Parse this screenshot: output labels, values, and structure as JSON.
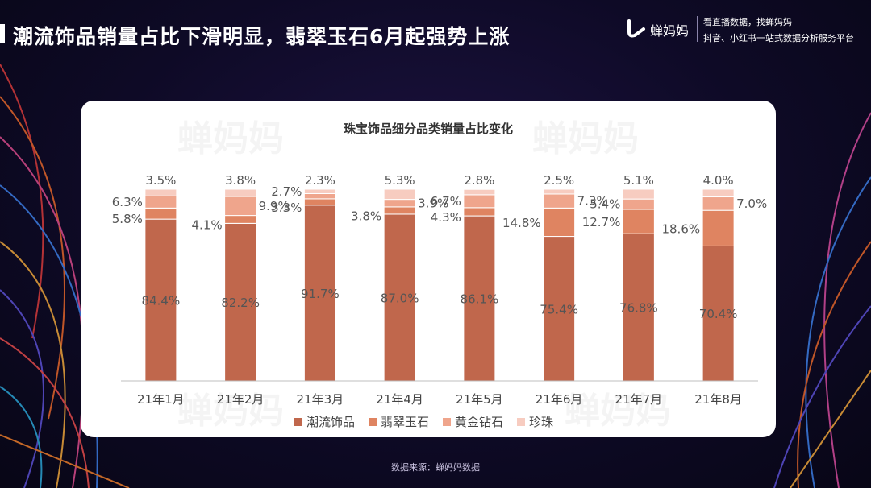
{
  "header": {
    "title": "潮流饰品销量占比下滑明显，翡翠玉石6月起强势上涨",
    "logo_text": "蝉妈妈",
    "slogan_line1": "看直播数据，找蝉妈妈",
    "slogan_line2": "抖音、小红书一站式数据分析服务平台"
  },
  "footer": {
    "source": "数据来源：蝉妈妈数据"
  },
  "watermark": "蝉妈妈",
  "colors": {
    "潮流饰品": "#c0674c",
    "翡翠玉石": "#df8461",
    "黄金钻石": "#efa58c",
    "珍珠": "#f7ccc0"
  },
  "chart_data": {
    "type": "bar",
    "stacked": true,
    "title": "珠宝饰品细分品类销量占比变化",
    "categories": [
      "21年1月",
      "21年2月",
      "21年3月",
      "21年4月",
      "21年5月",
      "21年6月",
      "21年7月",
      "21年8月"
    ],
    "series": [
      {
        "name": "潮流饰品",
        "values": [
          84.4,
          82.2,
          91.7,
          87.0,
          86.1,
          75.4,
          76.8,
          70.4
        ]
      },
      {
        "name": "翡翠玉石",
        "values": [
          5.8,
          4.1,
          3.3,
          3.8,
          4.3,
          14.8,
          12.7,
          18.6
        ]
      },
      {
        "name": "黄金钻石",
        "values": [
          6.3,
          9.9,
          2.7,
          3.9,
          6.7,
          7.3,
          5.4,
          7.0
        ]
      },
      {
        "name": "珍珠",
        "values": [
          3.5,
          3.8,
          2.3,
          5.3,
          2.8,
          2.5,
          5.1,
          4.0
        ]
      }
    ],
    "unit": "%",
    "ylim": [
      0,
      100
    ],
    "grid": false,
    "legend": "bottom"
  }
}
